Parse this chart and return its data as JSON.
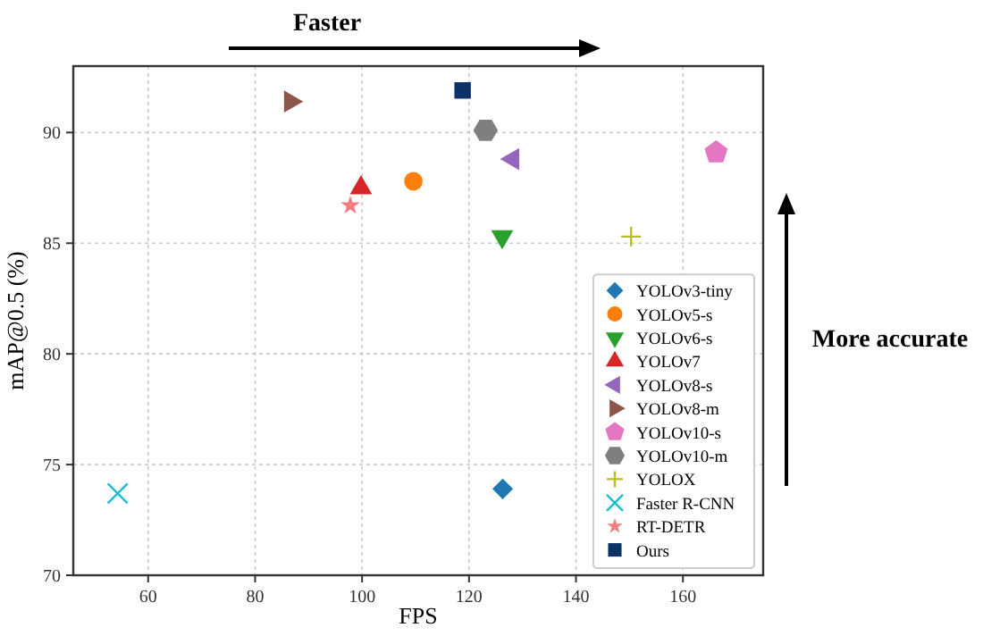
{
  "chart_data": {
    "type": "scatter",
    "xlabel": "FPS",
    "ylabel": "mAP@0.5 (%)",
    "xlim": [
      46,
      175
    ],
    "ylim": [
      70,
      93
    ],
    "xticks": [
      60,
      80,
      100,
      120,
      140,
      160
    ],
    "yticks": [
      70,
      75,
      80,
      85,
      90
    ],
    "grid": true,
    "legend": "bottom right",
    "annotations": [
      "Faster",
      "More accurate"
    ],
    "series": [
      {
        "name": "YOLOv3-tiny",
        "color": "#1f77b4",
        "marker": "diamond",
        "x": [
          126.3
        ],
        "values": [
          73.9
        ]
      },
      {
        "name": "YOLOv5-s",
        "color": "#ff7f0e",
        "marker": "circle",
        "x": [
          109.6
        ],
        "values": [
          87.8
        ]
      },
      {
        "name": "YOLOv6-s",
        "color": "#2ca02c",
        "marker": "triangle-down",
        "x": [
          126.2
        ],
        "values": [
          85.3
        ]
      },
      {
        "name": "YOLOv7",
        "color": "#d62728",
        "marker": "triangle",
        "x": [
          99.8
        ],
        "values": [
          87.5
        ]
      },
      {
        "name": "YOLOv8-s",
        "color": "#9467bd",
        "marker": "triangle-left",
        "x": [
          128.2
        ],
        "values": [
          88.8
        ]
      },
      {
        "name": "YOLOv8-m",
        "color": "#8c564b",
        "marker": "triangle-right",
        "x": [
          86.6
        ],
        "values": [
          91.4
        ]
      },
      {
        "name": "YOLOv10-s",
        "color": "#e377c2",
        "x": [
          166.2
        ],
        "values": [
          89.1
        ]
      },
      {
        "name": "YOLOv10-m",
        "color": "#7f7f7f",
        "x": [
          123.1
        ],
        "values": [
          90.1
        ]
      },
      {
        "name": "YOLOX",
        "color": "#bcbd22",
        "marker": "plus",
        "x": [
          150.3
        ],
        "values": [
          85.3
        ]
      },
      {
        "name": "Faster R-CNN",
        "color": "#17becf",
        "marker": "x",
        "x": [
          54.3
        ],
        "values": [
          73.7
        ]
      },
      {
        "name": "RT-DETR",
        "color": "#f08080",
        "marker": "star",
        "x": [
          97.8
        ],
        "values": [
          86.7
        ]
      },
      {
        "name": "Ours",
        "color": "#0b3166",
        "marker": "square",
        "x": [
          118.8
        ],
        "values": [
          91.9
        ]
      }
    ]
  }
}
